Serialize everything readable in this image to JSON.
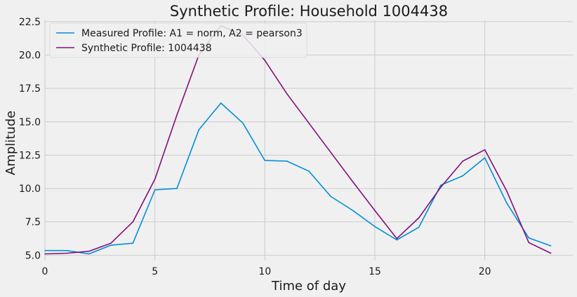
{
  "chart_data": {
    "type": "line",
    "title": "Synthetic Profile: Household 1004438",
    "xlabel": "Time of day",
    "ylabel": "Amplitude",
    "xlim": [
      0,
      24
    ],
    "ylim": [
      4.6,
      22.6
    ],
    "xticks": [
      0,
      5,
      10,
      15,
      20
    ],
    "yticks": [
      5.0,
      7.5,
      10.0,
      12.5,
      15.0,
      17.5,
      20.0,
      22.5
    ],
    "ytick_labels": [
      "5.0",
      "7.5",
      "10.0",
      "12.5",
      "15.0",
      "17.5",
      "20.0",
      "22.5"
    ],
    "grid": true,
    "legend_location": "top-left",
    "x": [
      0,
      1,
      2,
      3,
      4,
      5,
      6,
      7,
      8,
      9,
      10,
      11,
      12,
      13,
      14,
      15,
      16,
      17,
      18,
      19,
      20,
      21,
      22,
      23
    ],
    "series": [
      {
        "name": "Measured Profile: A1 = norm, A2 = pearson3",
        "color": "#008fd5",
        "values": [
          5.35,
          5.35,
          5.1,
          5.75,
          5.9,
          9.9,
          10.0,
          14.4,
          16.4,
          14.9,
          12.1,
          12.05,
          11.3,
          9.4,
          8.35,
          7.15,
          6.15,
          7.1,
          10.25,
          10.95,
          12.3,
          8.9,
          6.3,
          5.7
        ]
      },
      {
        "name": "Synthetic Profile: 1004438",
        "color": "#810f7c",
        "values": [
          5.1,
          5.15,
          5.3,
          5.9,
          7.5,
          10.7,
          15.5,
          20.0,
          22.2,
          21.5,
          19.6,
          17.1,
          14.9,
          12.7,
          10.5,
          8.35,
          6.25,
          7.8,
          10.1,
          12.05,
          12.9,
          9.8,
          5.95,
          5.15
        ]
      }
    ]
  }
}
